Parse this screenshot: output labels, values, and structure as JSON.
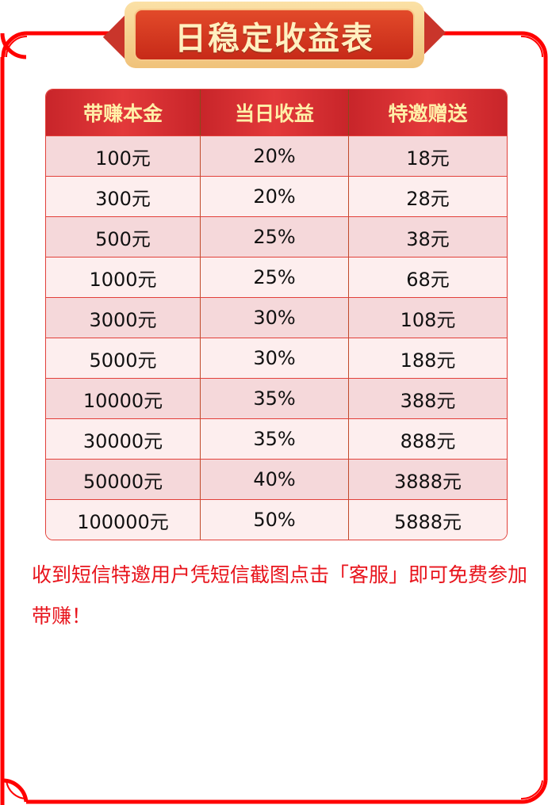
{
  "title": "日稳定收益表",
  "table": {
    "headers": [
      "带赚本金",
      "当日收益",
      "特邀赠送"
    ],
    "rows": [
      [
        "100元",
        "20%",
        "18元"
      ],
      [
        "300元",
        "20%",
        "28元"
      ],
      [
        "500元",
        "25%",
        "38元"
      ],
      [
        "1000元",
        "25%",
        "68元"
      ],
      [
        "3000元",
        "30%",
        "108元"
      ],
      [
        "5000元",
        "30%",
        "188元"
      ],
      [
        "10000元",
        "35%",
        "388元"
      ],
      [
        "30000元",
        "35%",
        "888元"
      ],
      [
        "50000元",
        "40%",
        "3888元"
      ],
      [
        "100000元",
        "50%",
        "5888元"
      ]
    ]
  },
  "note": "收到短信特邀用户凭短信截图点击「客服」即可免费参加带赚！",
  "colors": {
    "border": "#ff0000",
    "header": "#d9302f",
    "note": "#e8141c"
  }
}
